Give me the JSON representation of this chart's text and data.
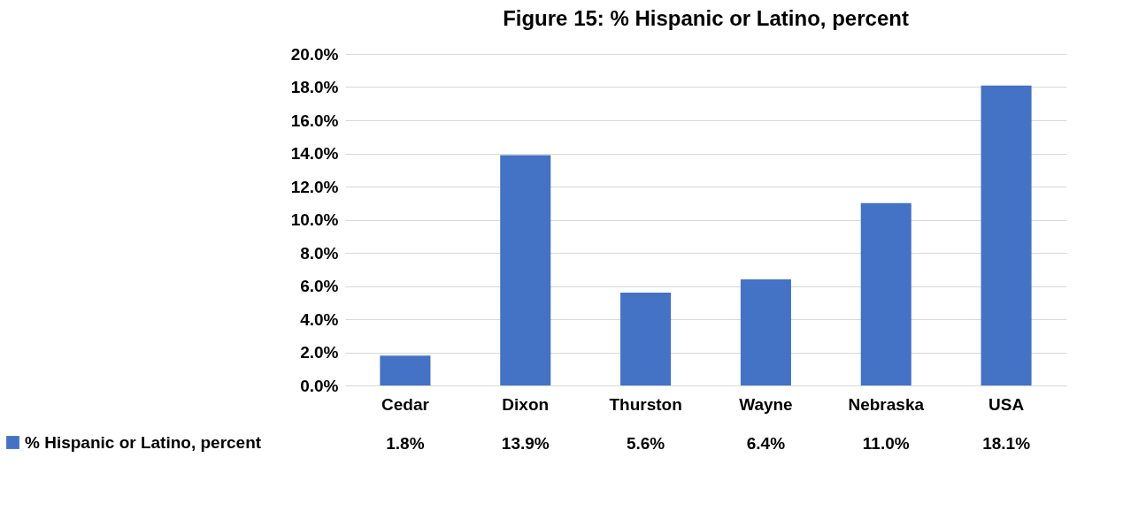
{
  "chart_data": {
    "type": "bar",
    "title": "Figure 15: % Hispanic or Latino, percent",
    "categories": [
      "Cedar",
      "Dixon",
      "Thurston",
      "Wayne",
      "Nebraska",
      "USA"
    ],
    "series": [
      {
        "name": "% Hispanic or Latino, percent",
        "color": "#4472c4",
        "values": [
          1.8,
          13.9,
          5.6,
          6.4,
          11.0,
          18.1
        ],
        "value_labels": [
          "1.8%",
          "13.9%",
          "5.6%",
          "6.4%",
          "11.0%",
          "18.1%"
        ]
      }
    ],
    "ylim": [
      0,
      20
    ],
    "yticks": [
      {
        "value": 0,
        "label": "0.0%"
      },
      {
        "value": 2,
        "label": "2.0%"
      },
      {
        "value": 4,
        "label": "4.0%"
      },
      {
        "value": 6,
        "label": "6.0%"
      },
      {
        "value": 8,
        "label": "8.0%"
      },
      {
        "value": 10,
        "label": "10.0%"
      },
      {
        "value": 12,
        "label": "12.0%"
      },
      {
        "value": 14,
        "label": "14.0%"
      },
      {
        "value": 16,
        "label": "16.0%"
      },
      {
        "value": 18,
        "label": "18.0%"
      },
      {
        "value": 20,
        "label": "20.0%"
      }
    ],
    "grid": "y",
    "legend": "bottom left"
  }
}
